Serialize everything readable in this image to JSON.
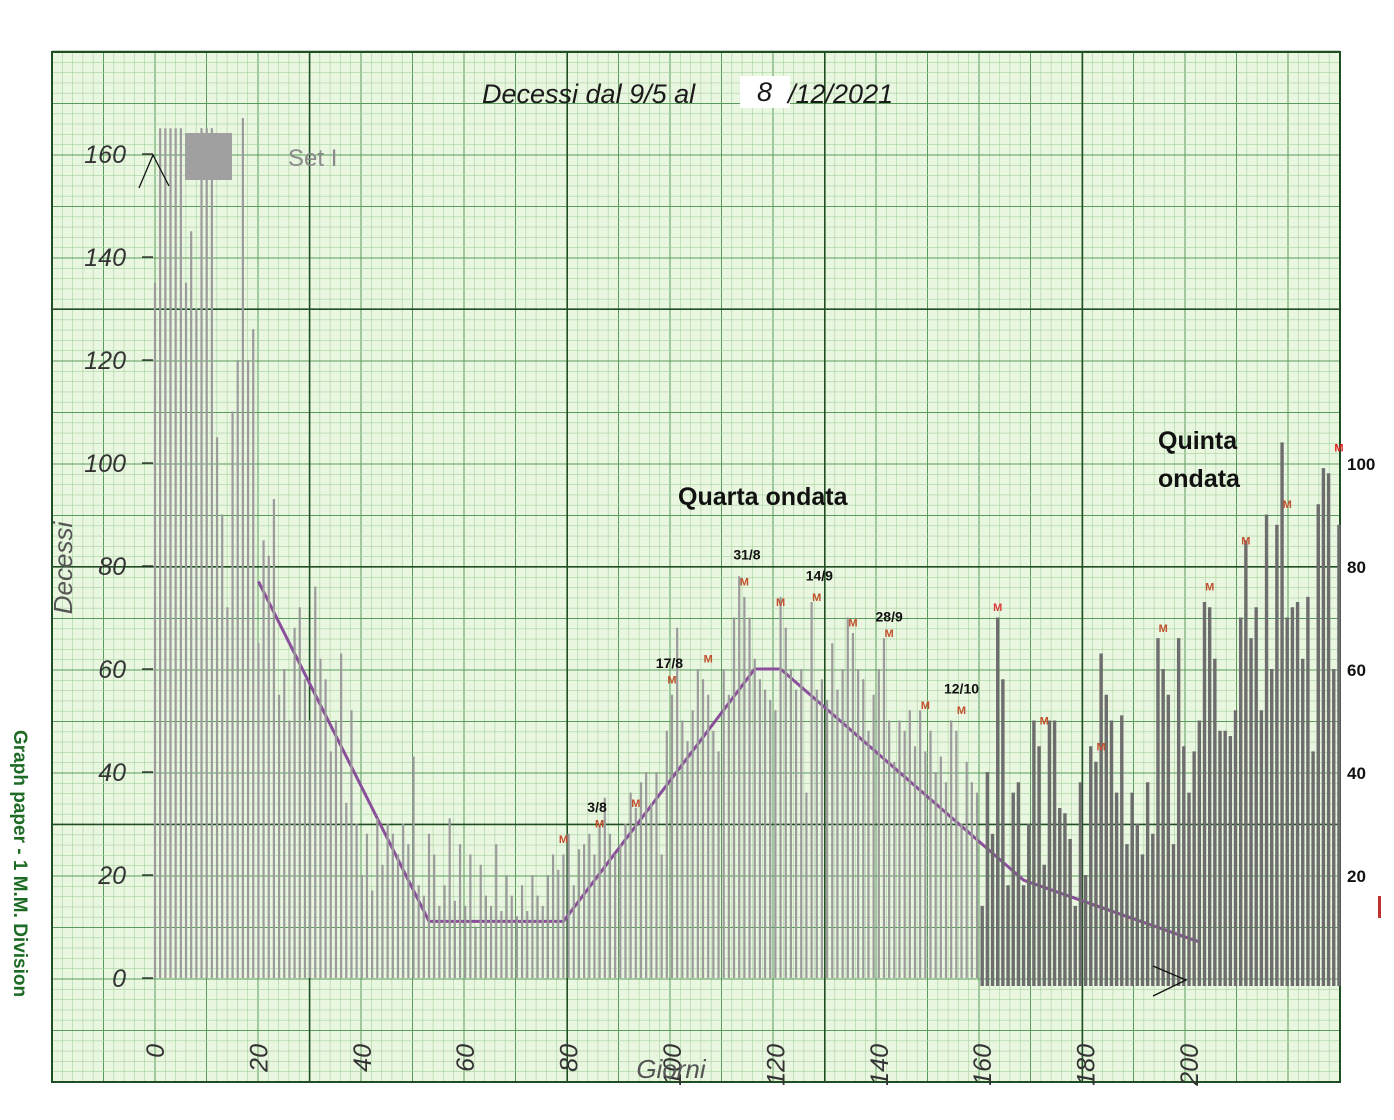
{
  "chart_data": {
    "type": "bar",
    "title_parts": [
      "Decessi dal 9/5 al",
      "8",
      "/12/2021"
    ],
    "xlabel": "Giorni",
    "ylabel": "Decessi",
    "xlim": [
      0,
      230
    ],
    "ylim": [
      0,
      165
    ],
    "x_ticks": [
      "0",
      "20",
      "40",
      "60",
      "80",
      "100",
      "120",
      "140",
      "160",
      "180",
      "200"
    ],
    "y_ticks_left": [
      "0",
      "20",
      "40",
      "60",
      "80",
      "100",
      "120",
      "140",
      "160"
    ],
    "y_ticks_right": [
      "20",
      "40",
      "60",
      "80",
      "100"
    ],
    "grid": true,
    "legend_text": "Set I",
    "bars_first_period": [
      [
        0,
        135
      ],
      [
        1,
        165
      ],
      [
        2,
        165
      ],
      [
        3,
        165
      ],
      [
        4,
        165
      ],
      [
        5,
        165
      ],
      [
        6,
        135
      ],
      [
        7,
        145
      ],
      [
        8,
        130
      ],
      [
        9,
        165
      ],
      [
        10,
        165
      ],
      [
        11,
        165
      ],
      [
        12,
        105
      ],
      [
        13,
        90
      ],
      [
        14,
        72
      ],
      [
        15,
        110
      ],
      [
        16,
        120
      ],
      [
        17,
        167
      ],
      [
        18,
        120
      ],
      [
        19,
        126
      ],
      [
        20,
        65
      ],
      [
        21,
        85
      ],
      [
        22,
        82
      ],
      [
        23,
        93
      ],
      [
        24,
        55
      ],
      [
        25,
        60
      ],
      [
        26,
        50
      ],
      [
        27,
        68
      ],
      [
        28,
        72
      ],
      [
        29,
        58
      ],
      [
        30,
        50
      ],
      [
        31,
        76
      ],
      [
        32,
        62
      ],
      [
        33,
        58
      ],
      [
        34,
        44
      ],
      [
        35,
        50
      ],
      [
        36,
        63
      ],
      [
        37,
        34
      ],
      [
        38,
        52
      ],
      [
        39,
        30
      ],
      [
        40,
        20
      ],
      [
        41,
        28
      ],
      [
        42,
        17
      ],
      [
        43,
        31
      ],
      [
        44,
        22
      ],
      [
        45,
        30
      ],
      [
        46,
        28
      ],
      [
        47,
        24
      ],
      [
        48,
        30
      ],
      [
        49,
        26
      ],
      [
        50,
        43
      ],
      [
        51,
        18
      ],
      [
        52,
        16
      ],
      [
        53,
        28
      ],
      [
        54,
        24
      ],
      [
        55,
        14
      ],
      [
        56,
        18
      ],
      [
        57,
        31
      ],
      [
        58,
        15
      ],
      [
        59,
        26
      ],
      [
        60,
        14
      ],
      [
        61,
        24
      ],
      [
        62,
        10
      ],
      [
        63,
        22
      ],
      [
        64,
        16
      ],
      [
        65,
        14
      ],
      [
        66,
        26
      ],
      [
        67,
        13
      ],
      [
        68,
        20
      ],
      [
        69,
        16
      ],
      [
        70,
        12
      ],
      [
        71,
        18
      ],
      [
        72,
        13
      ],
      [
        73,
        20
      ],
      [
        74,
        16
      ],
      [
        75,
        14
      ],
      [
        76,
        20
      ],
      [
        77,
        24
      ],
      [
        78,
        21
      ],
      [
        79,
        24
      ],
      [
        80,
        28
      ],
      [
        81,
        18
      ],
      [
        82,
        25
      ],
      [
        83,
        26
      ],
      [
        84,
        28
      ],
      [
        85,
        24
      ],
      [
        86,
        30
      ],
      [
        87,
        35
      ],
      [
        88,
        28
      ],
      [
        89,
        24
      ],
      [
        90,
        26
      ],
      [
        91,
        30
      ],
      [
        92,
        36
      ],
      [
        93,
        33
      ],
      [
        94,
        38
      ],
      [
        95,
        40
      ],
      [
        96,
        34
      ],
      [
        97,
        40
      ],
      [
        98,
        24
      ],
      [
        99,
        48
      ],
      [
        100,
        55
      ],
      [
        101,
        68
      ],
      [
        102,
        50
      ],
      [
        103,
        46
      ],
      [
        104,
        52
      ],
      [
        105,
        60
      ],
      [
        106,
        58
      ],
      [
        107,
        55
      ],
      [
        108,
        48
      ],
      [
        109,
        44
      ],
      [
        110,
        60
      ],
      [
        111,
        55
      ],
      [
        112,
        70
      ],
      [
        113,
        78
      ],
      [
        114,
        74
      ],
      [
        115,
        70
      ],
      [
        116,
        62
      ],
      [
        117,
        58
      ],
      [
        118,
        56
      ],
      [
        119,
        54
      ],
      [
        120,
        52
      ],
      [
        121,
        74
      ],
      [
        122,
        68
      ],
      [
        123,
        60
      ],
      [
        124,
        56
      ],
      [
        125,
        60
      ],
      [
        126,
        36
      ],
      [
        127,
        73
      ],
      [
        128,
        56
      ],
      [
        129,
        58
      ],
      [
        130,
        54
      ],
      [
        131,
        65
      ],
      [
        132,
        56
      ],
      [
        133,
        60
      ],
      [
        134,
        70
      ],
      [
        135,
        67
      ],
      [
        136,
        60
      ],
      [
        137,
        58
      ],
      [
        138,
        48
      ],
      [
        139,
        55
      ],
      [
        140,
        60
      ],
      [
        141,
        66
      ],
      [
        142,
        50
      ],
      [
        143,
        42
      ],
      [
        144,
        50
      ],
      [
        145,
        48
      ],
      [
        146,
        52
      ],
      [
        147,
        45
      ],
      [
        148,
        52
      ],
      [
        149,
        44
      ],
      [
        150,
        48
      ],
      [
        151,
        40
      ],
      [
        152,
        43
      ],
      [
        153,
        38
      ],
      [
        154,
        50
      ],
      [
        155,
        48
      ],
      [
        156,
        30
      ],
      [
        157,
        42
      ],
      [
        158,
        38
      ],
      [
        159,
        36
      ]
    ],
    "bars_second_period": [
      [
        160,
        14
      ],
      [
        161,
        40
      ],
      [
        162,
        28
      ],
      [
        163,
        70
      ],
      [
        164,
        58
      ],
      [
        165,
        18
      ],
      [
        166,
        36
      ],
      [
        167,
        38
      ],
      [
        168,
        18
      ],
      [
        169,
        30
      ],
      [
        170,
        50
      ],
      [
        171,
        45
      ],
      [
        172,
        22
      ],
      [
        173,
        50
      ],
      [
        174,
        50
      ],
      [
        175,
        33
      ],
      [
        176,
        32
      ],
      [
        177,
        27
      ],
      [
        178,
        14
      ],
      [
        179,
        38
      ],
      [
        180,
        20
      ],
      [
        181,
        45
      ],
      [
        182,
        42
      ],
      [
        183,
        63
      ],
      [
        184,
        55
      ],
      [
        185,
        50
      ],
      [
        186,
        36
      ],
      [
        187,
        51
      ],
      [
        188,
        26
      ],
      [
        189,
        36
      ],
      [
        190,
        30
      ],
      [
        191,
        24
      ],
      [
        192,
        38
      ],
      [
        193,
        28
      ],
      [
        194,
        66
      ],
      [
        195,
        60
      ],
      [
        196,
        55
      ],
      [
        197,
        26
      ],
      [
        198,
        66
      ],
      [
        199,
        45
      ],
      [
        200,
        36
      ],
      [
        201,
        44
      ],
      [
        202,
        50
      ],
      [
        203,
        73
      ],
      [
        204,
        72
      ],
      [
        205,
        62
      ],
      [
        206,
        48
      ],
      [
        207,
        48
      ],
      [
        208,
        47
      ],
      [
        209,
        52
      ],
      [
        210,
        70
      ],
      [
        211,
        85
      ],
      [
        212,
        66
      ],
      [
        213,
        72
      ],
      [
        214,
        52
      ],
      [
        215,
        90
      ],
      [
        216,
        60
      ],
      [
        217,
        88
      ],
      [
        218,
        104
      ],
      [
        219,
        70
      ],
      [
        220,
        72
      ],
      [
        221,
        73
      ],
      [
        222,
        62
      ],
      [
        223,
        74
      ],
      [
        224,
        44
      ],
      [
        225,
        92
      ],
      [
        226,
        99
      ],
      [
        227,
        98
      ],
      [
        228,
        60
      ],
      [
        229,
        88
      ]
    ],
    "trend_line": [
      [
        20,
        77
      ],
      [
        53,
        11
      ],
      [
        57,
        11
      ],
      [
        79,
        11
      ],
      [
        116,
        60
      ],
      [
        121,
        60
      ],
      [
        168,
        19
      ],
      [
        202,
        7
      ]
    ],
    "markers": [
      {
        "label": "M",
        "x": 79,
        "y": 27,
        "color": "#c0502c"
      },
      {
        "label": "M",
        "x": 86,
        "y": 30,
        "color": "#c0502c"
      },
      {
        "label": "M",
        "x": 93,
        "y": 34,
        "color": "#c0502c"
      },
      {
        "label": "M",
        "x": 100,
        "y": 58,
        "color": "#c0502c"
      },
      {
        "label": "M",
        "x": 107,
        "y": 62,
        "color": "#c0502c"
      },
      {
        "label": "M",
        "x": 114,
        "y": 77,
        "color": "#c0502c"
      },
      {
        "label": "M",
        "x": 121,
        "y": 73,
        "color": "#c0502c"
      },
      {
        "label": "M",
        "x": 128,
        "y": 74,
        "color": "#c0502c"
      },
      {
        "label": "M",
        "x": 135,
        "y": 69,
        "color": "#c0502c"
      },
      {
        "label": "M",
        "x": 142,
        "y": 67,
        "color": "#c0502c"
      },
      {
        "label": "M",
        "x": 149,
        "y": 53,
        "color": "#c0502c"
      },
      {
        "label": "M",
        "x": 156,
        "y": 52,
        "color": "#c0502c"
      },
      {
        "label": "M",
        "x": 163,
        "y": 72,
        "color": "#d93a3a"
      },
      {
        "label": "M",
        "x": 172,
        "y": 50,
        "color": "#c0502c"
      },
      {
        "label": "M",
        "x": 183,
        "y": 45,
        "color": "#c0502c"
      },
      {
        "label": "M",
        "x": 195,
        "y": 68,
        "color": "#c0502c"
      },
      {
        "label": "M",
        "x": 204,
        "y": 76,
        "color": "#c0502c"
      },
      {
        "label": "M",
        "x": 211,
        "y": 85,
        "color": "#c0502c"
      },
      {
        "label": "M",
        "x": 219,
        "y": 92,
        "color": "#c0502c"
      },
      {
        "label": "M",
        "x": 229,
        "y": 103,
        "color": "#e02020"
      }
    ],
    "date_labels": [
      {
        "text": "3/8",
        "x": 85.5,
        "y": 33
      },
      {
        "text": "17/8",
        "x": 99.5,
        "y": 61
      },
      {
        "text": "31/8",
        "x": 114.5,
        "y": 82
      },
      {
        "text": "14/9",
        "x": 128.5,
        "y": 78
      },
      {
        "text": "28/9",
        "x": 142,
        "y": 70
      },
      {
        "text": "12/10",
        "x": 156,
        "y": 56
      }
    ],
    "annotations": [
      "Quarta ondata",
      "Quinta",
      "ondata"
    ],
    "colors": {
      "background": "#e9f6e0",
      "grid_minor": "#a9d3a0",
      "grid_major": "#5a9a5c",
      "grid_heavy": "#1f4e22",
      "bars": "#9b9b9b",
      "bars_second": "#6d6d6d",
      "trend": "#8a4f9a"
    }
  },
  "side_text": "Graph paper - 1 M.M. Division"
}
